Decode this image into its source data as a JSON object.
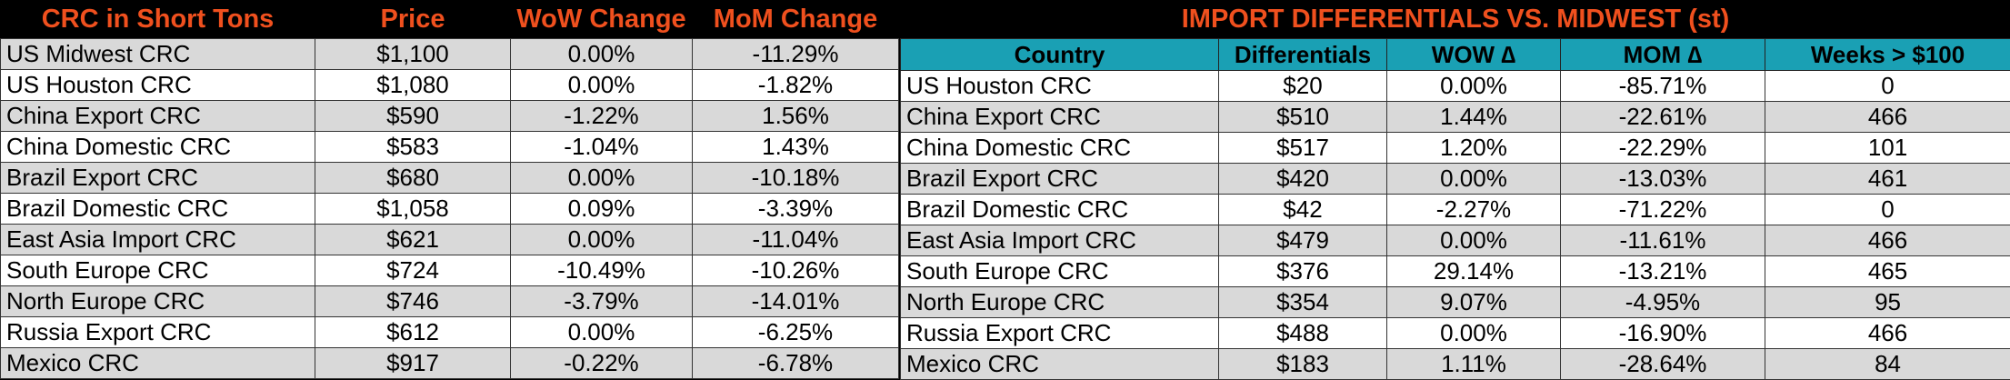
{
  "left": {
    "headers": [
      "CRC in Short Tons",
      "Price",
      "WoW Change",
      "MoM Change"
    ],
    "rows": [
      [
        "US Midwest CRC",
        "$1,100",
        "0.00%",
        "-11.29%"
      ],
      [
        "US Houston CRC",
        "$1,080",
        "0.00%",
        "-1.82%"
      ],
      [
        "China Export CRC",
        "$590",
        "-1.22%",
        "1.56%"
      ],
      [
        "China Domestic CRC",
        "$583",
        "-1.04%",
        "1.43%"
      ],
      [
        "Brazil Export CRC",
        "$680",
        "0.00%",
        "-10.18%"
      ],
      [
        "Brazil Domestic CRC",
        "$1,058",
        "0.09%",
        "-3.39%"
      ],
      [
        "East Asia Import CRC",
        "$621",
        "0.00%",
        "-11.04%"
      ],
      [
        "South Europe CRC",
        "$724",
        "-10.49%",
        "-10.26%"
      ],
      [
        "North Europe CRC",
        "$746",
        "-3.79%",
        "-14.01%"
      ],
      [
        "Russia Export CRC",
        "$612",
        "0.00%",
        "-6.25%"
      ],
      [
        "Mexico CRC",
        "$917",
        "-0.22%",
        "-6.78%"
      ]
    ]
  },
  "right": {
    "title": "IMPORT DIFFERENTIALS VS. MIDWEST (st)",
    "headers": [
      "Country",
      "Differentials",
      "WOW ∆",
      "MOM ∆",
      "Weeks > $100"
    ],
    "rows": [
      [
        "US Houston CRC",
        "$20",
        "0.00%",
        "-85.71%",
        "0"
      ],
      [
        "China Export CRC",
        "$510",
        "1.44%",
        "-22.61%",
        "466"
      ],
      [
        "China Domestic CRC",
        "$517",
        "1.20%",
        "-22.29%",
        "101"
      ],
      [
        "Brazil Export CRC",
        "$420",
        "0.00%",
        "-13.03%",
        "461"
      ],
      [
        "Brazil Domestic CRC",
        "$42",
        "-2.27%",
        "-71.22%",
        "0"
      ],
      [
        "East Asia Import CRC",
        "$479",
        "0.00%",
        "-11.61%",
        "466"
      ],
      [
        "South Europe CRC",
        "$376",
        "29.14%",
        "-13.21%",
        "465"
      ],
      [
        "North Europe CRC",
        "$354",
        "9.07%",
        "-4.95%",
        "95"
      ],
      [
        "Russia Export CRC",
        "$488",
        "0.00%",
        "-16.90%",
        "466"
      ],
      [
        "Mexico CRC",
        "$183",
        "1.11%",
        "-28.64%",
        "84"
      ]
    ]
  }
}
